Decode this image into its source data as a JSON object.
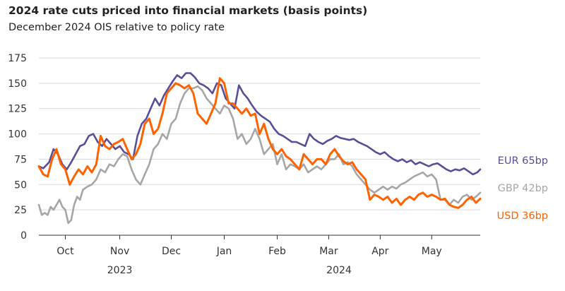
{
  "chart_data": {
    "type": "line",
    "title": "2024 rate cuts priced into financial markets (basis points)",
    "subtitle": "December 2024 OIS relative to policy rate",
    "xlabel": "",
    "ylabel": "",
    "ylim": [
      0,
      175
    ],
    "yticks": [
      0,
      25,
      50,
      75,
      100,
      125,
      150,
      175
    ],
    "x_range": [
      0,
      300
    ],
    "months": [
      {
        "label": "Oct",
        "x": 18
      },
      {
        "label": "Nov",
        "x": 55
      },
      {
        "label": "Dec",
        "x": 90
      },
      {
        "label": "Jan",
        "x": 126
      },
      {
        "label": "Feb",
        "x": 162
      },
      {
        "label": "Mar",
        "x": 197
      },
      {
        "label": "Apr",
        "x": 232
      },
      {
        "label": "May",
        "x": 267
      }
    ],
    "years": [
      {
        "label": "2023",
        "x": 55
      },
      {
        "label": "2024",
        "x": 204
      }
    ],
    "series": [
      {
        "name": "EUR",
        "legend": "EUR 65bp",
        "color": "#5a4e98",
        "x": [
          0,
          3,
          7,
          10,
          13,
          16,
          19,
          22,
          25,
          28,
          31,
          34,
          37,
          40,
          43,
          46,
          49,
          52,
          55,
          58,
          61,
          64,
          67,
          70,
          73,
          76,
          79,
          82,
          85,
          88,
          91,
          94,
          97,
          100,
          103,
          106,
          109,
          112,
          115,
          118,
          121,
          124,
          127,
          130,
          133,
          136,
          139,
          142,
          145,
          148,
          151,
          154,
          157,
          160,
          163,
          166,
          169,
          172,
          175,
          178,
          181,
          184,
          187,
          190,
          193,
          196,
          199,
          202,
          205,
          208,
          211,
          214,
          217,
          220,
          223,
          226,
          229,
          232,
          235,
          238,
          241,
          244,
          247,
          250,
          253,
          256,
          259,
          262,
          265,
          268,
          271,
          274,
          277,
          280,
          283,
          286,
          289,
          292,
          295,
          298,
          300
        ],
        "values": [
          68,
          66,
          72,
          85,
          80,
          70,
          65,
          72,
          80,
          88,
          90,
          98,
          100,
          92,
          88,
          95,
          90,
          85,
          88,
          82,
          80,
          75,
          98,
          110,
          115,
          125,
          135,
          128,
          138,
          145,
          152,
          158,
          155,
          160,
          160,
          156,
          150,
          148,
          145,
          140,
          150,
          148,
          135,
          130,
          125,
          148,
          140,
          135,
          128,
          122,
          118,
          115,
          112,
          105,
          100,
          98,
          95,
          92,
          92,
          90,
          88,
          100,
          95,
          92,
          90,
          93,
          95,
          98,
          96,
          95,
          94,
          95,
          92,
          90,
          88,
          85,
          82,
          80,
          82,
          78,
          75,
          73,
          75,
          72,
          74,
          70,
          72,
          70,
          68,
          70,
          71,
          68,
          65,
          63,
          65,
          64,
          66,
          63,
          60,
          62,
          65
        ]
      },
      {
        "name": "GBP",
        "legend": "GBP 42bp",
        "color": "#a6a6a6",
        "x": [
          0,
          2,
          4,
          6,
          8,
          10,
          12,
          14,
          16,
          18,
          20,
          22,
          24,
          26,
          28,
          30,
          33,
          36,
          39,
          42,
          45,
          48,
          51,
          54,
          57,
          60,
          63,
          66,
          69,
          72,
          75,
          78,
          81,
          84,
          87,
          90,
          93,
          96,
          99,
          102,
          105,
          108,
          111,
          114,
          117,
          120,
          123,
          126,
          129,
          132,
          135,
          138,
          141,
          144,
          147,
          150,
          153,
          156,
          159,
          162,
          165,
          168,
          171,
          174,
          177,
          180,
          183,
          186,
          189,
          192,
          195,
          198,
          201,
          204,
          207,
          210,
          213,
          216,
          219,
          222,
          225,
          228,
          231,
          234,
          237,
          240,
          243,
          246,
          249,
          252,
          255,
          258,
          261,
          264,
          267,
          270,
          273,
          276,
          279,
          282,
          285,
          288,
          291,
          294,
          297,
          300
        ],
        "values": [
          30,
          20,
          22,
          20,
          28,
          25,
          30,
          35,
          28,
          25,
          12,
          15,
          30,
          38,
          35,
          45,
          48,
          50,
          55,
          65,
          62,
          70,
          68,
          75,
          80,
          78,
          65,
          55,
          50,
          60,
          70,
          85,
          90,
          100,
          95,
          110,
          115,
          130,
          140,
          145,
          145,
          147,
          143,
          135,
          130,
          125,
          120,
          128,
          125,
          115,
          95,
          100,
          90,
          95,
          105,
          95,
          80,
          85,
          90,
          70,
          80,
          65,
          70,
          68,
          65,
          70,
          62,
          65,
          68,
          65,
          70,
          75,
          75,
          80,
          70,
          72,
          68,
          60,
          55,
          50,
          45,
          42,
          45,
          48,
          45,
          48,
          46,
          50,
          52,
          55,
          58,
          60,
          62,
          58,
          60,
          55,
          35,
          35,
          30,
          35,
          32,
          38,
          40,
          35,
          38,
          42
        ]
      },
      {
        "name": "USD",
        "legend": "USD 36bp",
        "color": "#ff6200",
        "x": [
          0,
          3,
          6,
          9,
          12,
          15,
          18,
          21,
          24,
          27,
          30,
          33,
          36,
          39,
          42,
          45,
          48,
          51,
          54,
          57,
          60,
          63,
          66,
          69,
          72,
          75,
          78,
          81,
          84,
          87,
          90,
          93,
          96,
          99,
          102,
          105,
          108,
          111,
          114,
          117,
          120,
          123,
          126,
          129,
          132,
          135,
          138,
          141,
          144,
          147,
          150,
          153,
          156,
          159,
          162,
          165,
          168,
          171,
          174,
          177,
          180,
          183,
          186,
          189,
          192,
          195,
          198,
          201,
          204,
          207,
          210,
          213,
          216,
          219,
          222,
          225,
          228,
          231,
          234,
          237,
          240,
          243,
          246,
          249,
          252,
          255,
          258,
          261,
          264,
          267,
          270,
          273,
          276,
          279,
          282,
          285,
          288,
          291,
          294,
          297,
          300
        ],
        "values": [
          68,
          60,
          58,
          75,
          85,
          70,
          65,
          50,
          58,
          65,
          60,
          68,
          62,
          70,
          98,
          88,
          85,
          90,
          92,
          95,
          85,
          75,
          80,
          90,
          110,
          115,
          100,
          105,
          120,
          140,
          145,
          150,
          148,
          145,
          148,
          140,
          120,
          115,
          110,
          120,
          130,
          155,
          150,
          130,
          130,
          125,
          120,
          125,
          118,
          120,
          100,
          110,
          95,
          85,
          80,
          85,
          78,
          75,
          70,
          65,
          80,
          75,
          70,
          75,
          75,
          70,
          80,
          85,
          78,
          73,
          70,
          72,
          65,
          60,
          55,
          35,
          40,
          38,
          35,
          38,
          32,
          36,
          30,
          35,
          38,
          35,
          40,
          42,
          38,
          40,
          38,
          35,
          36,
          30,
          28,
          27,
          30,
          35,
          38,
          32,
          36
        ]
      }
    ]
  }
}
